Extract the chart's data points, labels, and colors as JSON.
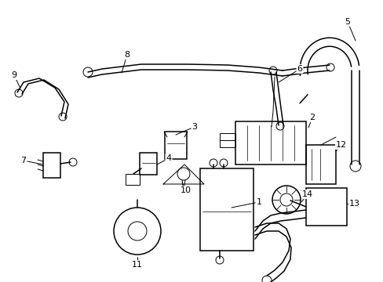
{
  "bg_color": "#ffffff",
  "lc": "#000000",
  "lw_thick": 1.6,
  "lw_med": 1.1,
  "lw_thin": 0.7,
  "figsize": [
    4.89,
    3.6
  ],
  "dpi": 100
}
